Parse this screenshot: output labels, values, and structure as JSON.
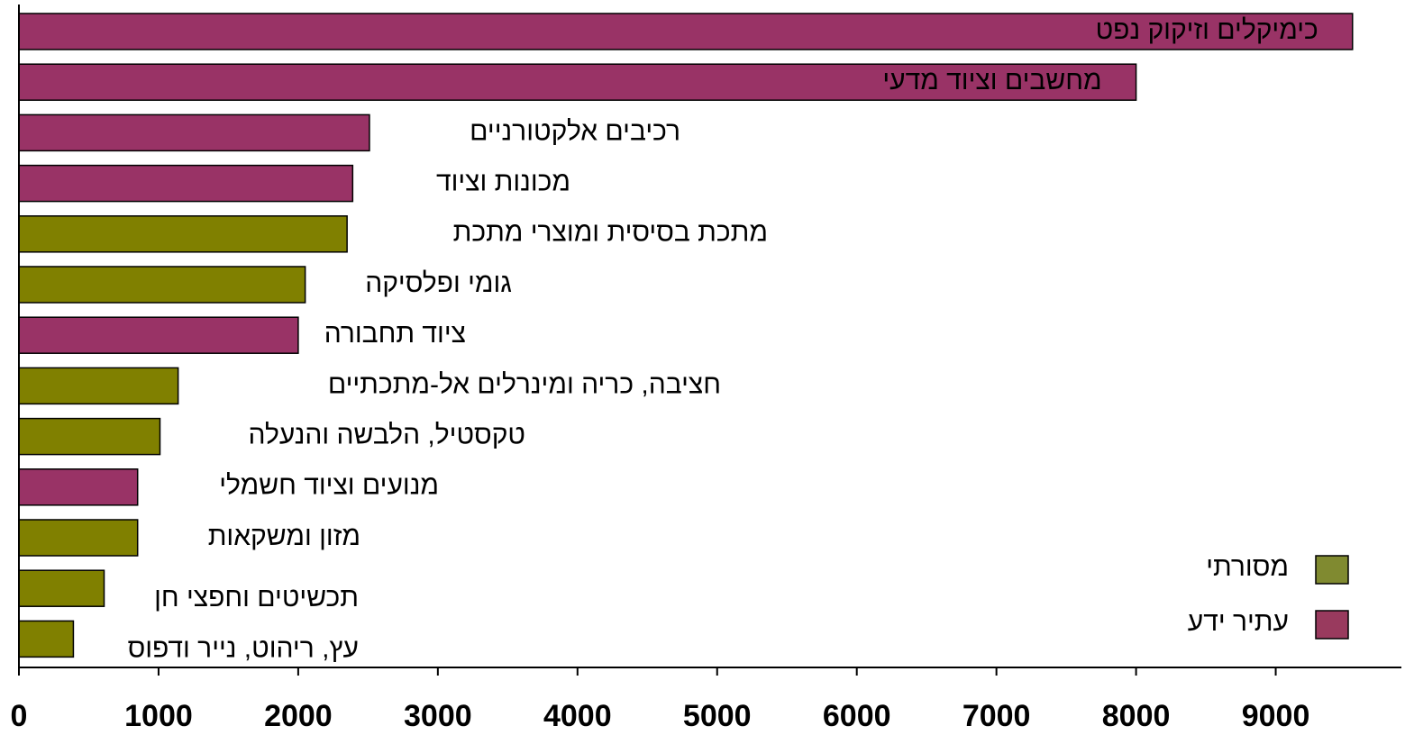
{
  "chart_data": {
    "type": "barh",
    "categories": [
      "כימיקלים וזיקוק נפט",
      "מחשבים וציוד מדעי",
      "רכיבים אלקטורניים",
      "מכונות וציוד",
      "מתכת בסיסית ומוצרי מתכת",
      "גומי ופלסיקה",
      "ציוד תחבורה",
      "חציבה, כריה ומינרלים אל-מתכתיים",
      "טקסטיל, הלבשה והנעלה",
      "מנועים וציוד חשמלי",
      "מזון ומשקאות",
      "תכשיטים וחפצי חן",
      "עץ, ריהוט, נייר ודפוס"
    ],
    "series": [
      {
        "name": "מסורתי",
        "color": "#808000",
        "values": [
          null,
          null,
          null,
          null,
          2350,
          2050,
          null,
          1140,
          1010,
          null,
          850,
          610,
          390
        ]
      },
      {
        "name": "עתיר ידע",
        "color": "#993366",
        "values": [
          9550,
          8000,
          2510,
          2390,
          null,
          null,
          2000,
          null,
          null,
          850,
          null,
          null,
          null
        ]
      }
    ],
    "xlim": [
      0,
      9900
    ],
    "xticks": [
      0,
      1000,
      2000,
      3000,
      4000,
      5000,
      6000,
      7000,
      8000,
      9000
    ],
    "legend": "lower right"
  }
}
